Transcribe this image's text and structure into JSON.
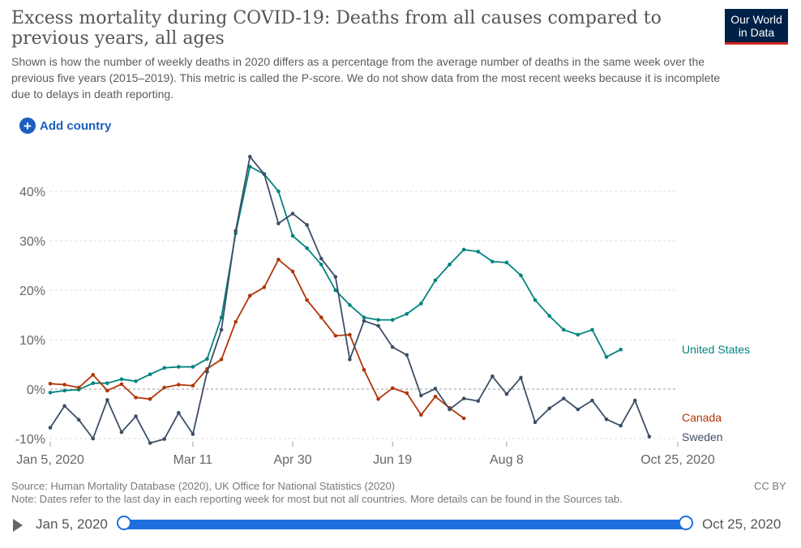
{
  "header": {
    "title": "Excess mortality during COVID-19: Deaths from all causes compared to previous years, all ages",
    "subtitle": "Shown is how the number of weekly deaths in 2020 differs as a percentage from the average number of deaths in the same week over the previous five years (2015–2019). This metric is called the P-score. We do not show data from the most recent weeks because it is incomplete due to delays in death reporting.",
    "logo_line1": "Our World",
    "logo_line2": "in Data",
    "add_country_label": "Add country"
  },
  "footer": {
    "source": "Source: Human Mortality Database (2020), UK Office for National Statistics (2020)",
    "note": "Note: Dates refer to the last day in each reporting week for most but not all countries. More details can be found in the Sources tab.",
    "license": "CC BY"
  },
  "timeline": {
    "start_label": "Jan 5, 2020",
    "end_label": "Oct 25, 2020"
  },
  "colors": {
    "united_states": "#00847e",
    "canada": "#b13507",
    "sweden": "#3c4e66",
    "accent": "#1d6fe0"
  },
  "chart_data": {
    "type": "line",
    "title": "Excess mortality during COVID-19: Deaths from all causes compared to previous years, all ages",
    "xlabel": "",
    "ylabel": "",
    "ylim": [
      -10,
      47
    ],
    "y_ticks": [
      -10,
      0,
      10,
      20,
      30,
      40
    ],
    "y_tick_labels": [
      "-10%",
      "0%",
      "10%",
      "20%",
      "30%",
      "40%"
    ],
    "x_start_week": 0,
    "x_ticks": [
      0,
      10,
      17,
      24,
      32,
      44
    ],
    "x_tick_labels": [
      "Jan 5, 2020",
      "Mar 11",
      "Apr 30",
      "Jun 19",
      "Aug 8",
      "Oct 25, 2020"
    ],
    "grid": "horizontal-dashed",
    "legend": "line-end labels, right",
    "series": [
      {
        "name": "United States",
        "color": "#00847e",
        "values": [
          -0.7,
          -0.3,
          -0.1,
          1.2,
          1.2,
          2.0,
          1.6,
          3.0,
          4.3,
          4.5,
          4.5,
          6.1,
          14.5,
          31.5,
          45.0,
          43.5,
          40.0,
          31.0,
          28.5,
          25.2,
          20.0,
          17.0,
          14.5,
          14.0,
          14.0,
          15.2,
          17.3,
          22.0,
          25.2,
          28.2,
          27.8,
          25.8,
          25.6,
          23.0,
          18.0,
          14.8,
          12.0,
          11.0,
          12.0,
          6.5,
          8.0
        ]
      },
      {
        "name": "Canada",
        "color": "#b13507",
        "values": [
          1.1,
          0.9,
          0.3,
          2.9,
          -0.3,
          1.0,
          -1.7,
          -2.0,
          0.3,
          0.9,
          0.7,
          4.1,
          6.0,
          13.6,
          18.9,
          20.6,
          26.2,
          23.8,
          18.0,
          14.5,
          10.8,
          11.0,
          3.9,
          -2.0,
          0.2,
          -0.8,
          -5.2,
          -1.5,
          -3.8,
          -5.9
        ]
      },
      {
        "name": "Sweden",
        "color": "#3c4e66",
        "values": [
          -7.8,
          -3.4,
          -6.2,
          -10.0,
          -2.2,
          -8.7,
          -5.5,
          -10.9,
          -10.1,
          -4.8,
          -9.1,
          3.5,
          12.0,
          32.0,
          47.0,
          43.5,
          33.5,
          35.5,
          33.2,
          26.4,
          22.7,
          6.0,
          13.8,
          12.8,
          8.5,
          6.9,
          -1.3,
          0.1,
          -4.1,
          -1.9,
          -2.4,
          2.6,
          -1.0,
          2.3,
          -6.7,
          -3.9,
          -1.9,
          -4.1,
          -2.3,
          -6.1,
          -7.4,
          -2.3,
          -9.6
        ]
      }
    ]
  }
}
